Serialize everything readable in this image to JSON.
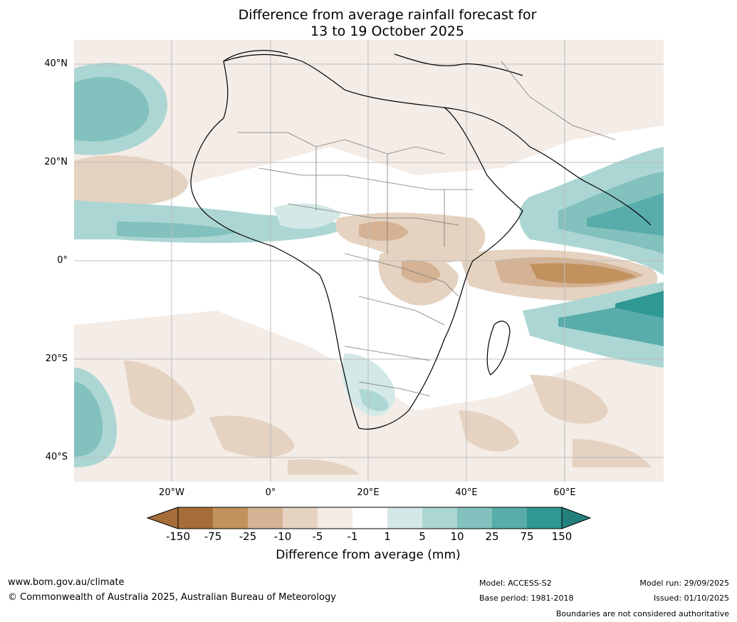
{
  "title": {
    "line1": "Difference from average rainfall forecast for",
    "line2": "13 to 19 October 2025"
  },
  "map": {
    "latitude_labels": [
      "40°N",
      "20°N",
      "0°",
      "20°S",
      "40°S"
    ],
    "longitude_labels": [
      "20°W",
      "0°",
      "20°E",
      "40°E",
      "60°E"
    ],
    "colors": {
      "ocean_default": "#ffffff",
      "land_outline": "#000000",
      "country_border": "#7a7a7a",
      "gridline": "#bdbdbd"
    }
  },
  "colorbar": {
    "ticks": [
      "-150",
      "-75",
      "-25",
      "-10",
      "-5",
      "-1",
      "1",
      "5",
      "10",
      "25",
      "75",
      "150"
    ],
    "colors": [
      "#a66d39",
      "#c1925e",
      "#d5b293",
      "#e5d2c1",
      "#f4ece6",
      "#ffffff",
      "#d4e9e7",
      "#acd6d3",
      "#82c1bd",
      "#58acaa",
      "#2f9894",
      "#23807c"
    ],
    "title": "Difference from average (mm)"
  },
  "footer": {
    "website": "www.bom.gov.au/climate",
    "copyright": "© Commonwealth of Australia 2025, Australian Bureau of Meteorology",
    "model": "Model: ACCESS-S2",
    "base_period": "Base period: 1981-2018",
    "model_run": "Model run: 29/09/2025",
    "issued": "Issued: 01/10/2025",
    "disclaimer": "Boundaries are not considered authoritative"
  }
}
